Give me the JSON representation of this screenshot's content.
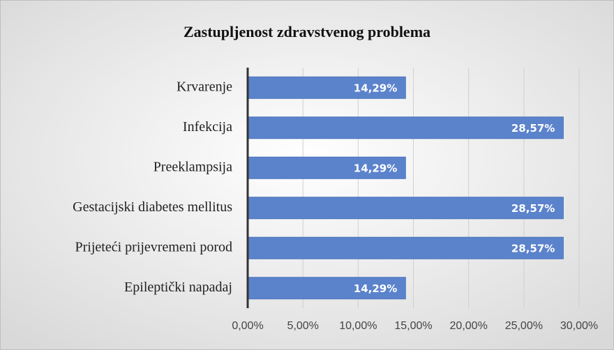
{
  "chart_data": {
    "type": "bar",
    "orientation": "horizontal",
    "title": "Zastupljenost zdravstvenog problema",
    "categories": [
      "Krvarenje",
      "Infekcija",
      "Preeklampsija",
      "Gestacijski diabetes mellitus",
      "Prijeteći prijevremeni porod",
      "Epileptički napadaj"
    ],
    "values": [
      14.29,
      28.57,
      14.29,
      28.57,
      28.57,
      14.29
    ],
    "value_labels": [
      "14,29%",
      "28,57%",
      "14,29%",
      "28,57%",
      "28,57%",
      "14,29%"
    ],
    "color": "#5b83cc",
    "xlim": [
      0,
      30
    ],
    "xticks": [
      {
        "value": 0,
        "label": "0,00%"
      },
      {
        "value": 5,
        "label": "5,00%"
      },
      {
        "value": 10,
        "label": "10,00%"
      },
      {
        "value": 15,
        "label": "15,00%"
      },
      {
        "value": 20,
        "label": "20,00%"
      },
      {
        "value": 25,
        "label": "25,00%"
      },
      {
        "value": 30,
        "label": "30,00%"
      }
    ],
    "grid": true
  }
}
